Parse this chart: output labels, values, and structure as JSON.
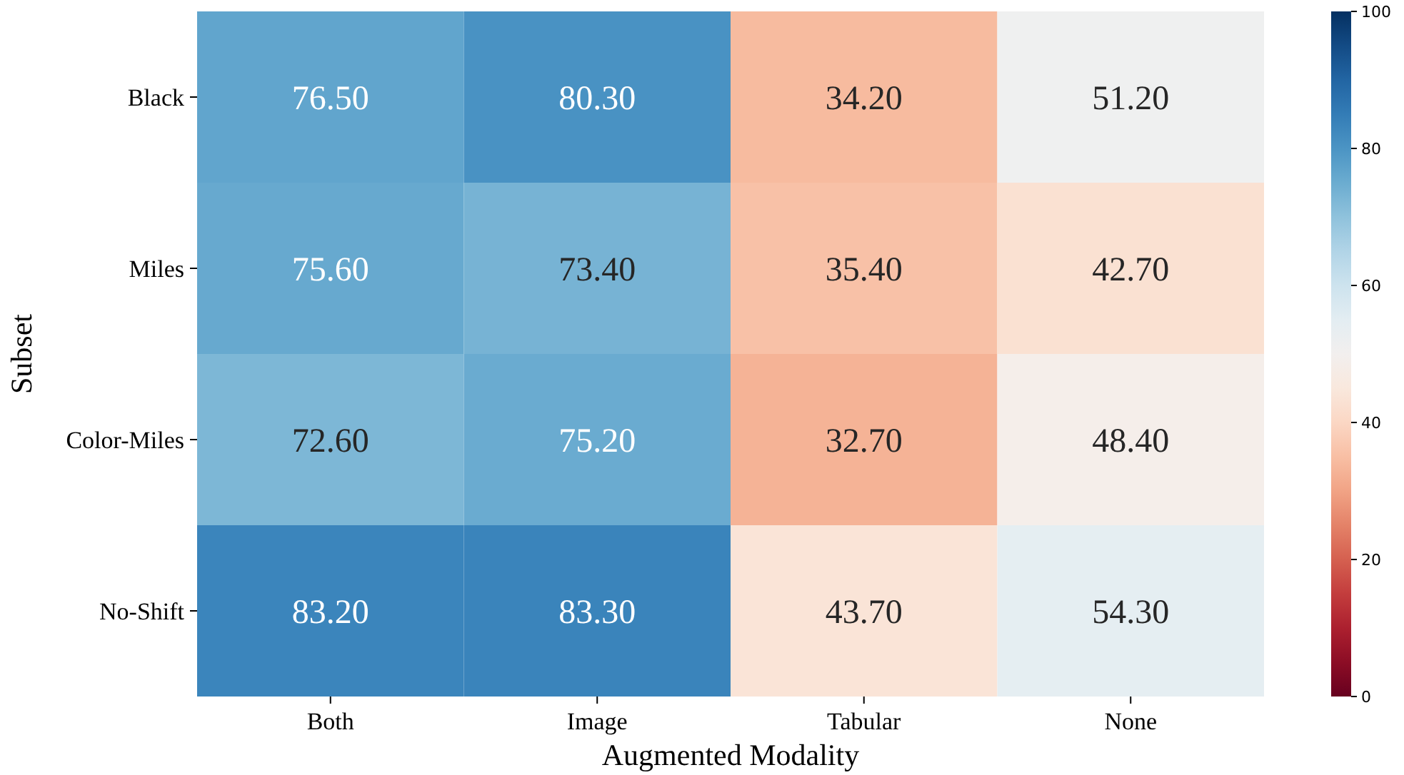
{
  "chart_data": {
    "type": "heatmap",
    "xlabel": "Augmented Modality",
    "ylabel": "Subset",
    "categories": [
      "Both",
      "Image",
      "Tabular",
      "None"
    ],
    "y_categories": [
      "Black",
      "Miles",
      "Color-Miles",
      "No-Shift"
    ],
    "cells": [
      [
        76.5,
        80.3,
        34.2,
        51.2
      ],
      [
        75.6,
        73.4,
        35.4,
        42.7
      ],
      [
        72.6,
        75.2,
        32.7,
        48.4
      ],
      [
        83.2,
        83.3,
        43.7,
        54.3
      ]
    ],
    "cell_labels": [
      [
        "76.50",
        "80.30",
        "34.20",
        "51.20"
      ],
      [
        "75.60",
        "73.40",
        "35.40",
        "42.70"
      ],
      [
        "72.60",
        "75.20",
        "32.70",
        "48.40"
      ],
      [
        "83.20",
        "83.30",
        "43.70",
        "54.30"
      ]
    ],
    "clim": [
      0,
      100
    ],
    "cticks": [
      0,
      20,
      40,
      60,
      80,
      100
    ]
  }
}
